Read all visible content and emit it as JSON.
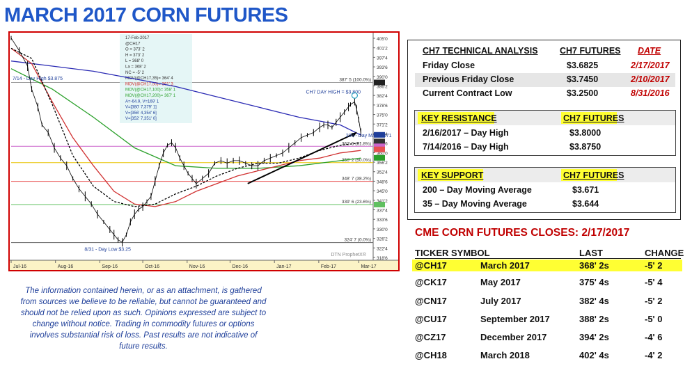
{
  "title": "MARCH 2017 CORN FUTURES",
  "disclaimer": "The information contained herein, or as an attachment, is gathered from sources we believe to be reliable, but cannot be guaranteed and should not be relied upon as such. Opinions expressed are subject to change without notice. Trading in commodity futures or options involves substantial risk of loss. Past results are not indicative of future results.",
  "technical": {
    "header": {
      "label": "CH7 TECHNICAL ANALYSIS",
      "futures": "CH7 FUTURES",
      "date": "DATE"
    },
    "rows": [
      {
        "label": "Friday Close",
        "value": "$3.6825",
        "date": "2/17/2017"
      },
      {
        "label": "Previous Friday Close",
        "value": "$3.7450",
        "date": "2/10/2017"
      },
      {
        "label": "Current Contract Low",
        "value": "$3.2500",
        "date": "8/31/2016"
      }
    ],
    "resistance": {
      "header": "KEY RESISTANCE",
      "header_futures": "CH7 FUTURES",
      "rows": [
        {
          "label": "2/16/2017 – Day High",
          "value": "$3.8000"
        },
        {
          "label": "7/14/2016 – Day High",
          "value": "$3.8750"
        }
      ]
    },
    "support": {
      "header": "KEY SUPPORT",
      "header_futures": "CH7 FUTURES",
      "rows": [
        {
          "label": "200 – Day Moving Average",
          "value": "$3.671"
        },
        {
          "label": "35 – Day Moving Average",
          "value": "$3.644"
        }
      ]
    }
  },
  "closes": {
    "title": "CME CORN FUTURES CLOSES:  2/17/2017",
    "headers": {
      "ticker": "TICKER SYMBOL",
      "last": "LAST",
      "change": "CHANGE"
    },
    "rows": [
      {
        "ticker": "@CH17",
        "month": "March 2017",
        "last": "368' 2s",
        "change": "-5' 2"
      },
      {
        "ticker": "@CK17",
        "month": "May 2017",
        "last": "375' 4s",
        "change": "-5' 4"
      },
      {
        "ticker": "@CN17",
        "month": "July 2017",
        "last": "382' 4s",
        "change": "-5' 2"
      },
      {
        "ticker": "@CU17",
        "month": "September 2017",
        "last": "388' 2s",
        "change": "-5' 0"
      },
      {
        "ticker": "@CZ17",
        "month": "December 2017",
        "last": "394' 2s",
        "change": "-4' 6"
      },
      {
        "ticker": "@CH18",
        "month": "March 2018",
        "last": "402' 4s",
        "change": "-4' 2"
      }
    ]
  },
  "chart_data": {
    "type": "line",
    "ylim": [
      318,
      406
    ],
    "x_ticks": [
      "Jul-16",
      "Aug-16",
      "Sep-16",
      "Oct-16",
      "Nov-16",
      "Dec-16",
      "Jan-17",
      "Feb-17",
      "Mar-17"
    ],
    "y_ticks": [
      "405'0",
      "401'2",
      "397'4",
      "393'6",
      "390'0",
      "386'2",
      "382'4",
      "378'6",
      "375'0",
      "371'2",
      "367'4",
      "363'6",
      "360'0",
      "356'2",
      "352'4",
      "348'6",
      "345'0",
      "341'2",
      "337'4",
      "333'6",
      "330'0",
      "326'2",
      "322'4",
      "318'6"
    ],
    "info_box": [
      "17-Feb-2017",
      "@CH17",
      "O = 373' 2",
      "H = 373' 2",
      "L = 368' 0",
      "La = 368' 2",
      "NC = -5' 2",
      "MOV(@CH17,35)= 364' 4",
      "MOV(@CH17,50)= 361' 3",
      "MOV(@CH17,100)= 358' 1",
      "MOV(@CH17,200)= 367' 1",
      "A=-64.9, V=169' 1",
      "V=[380' 7,379' 1]",
      "V=[356' 4,354' 6]",
      "V=[352' 7,351' 0]"
    ],
    "annotations": [
      {
        "text": "7/14 - Day High $3.875",
        "x": "2016-07-14",
        "y": 387.5
      },
      {
        "text": "CH7 DAY HIGH = $3.800",
        "x": "2017-02-16",
        "y": 380.0
      },
      {
        "text": "200 - Day MA $3.671",
        "x": "2017-02-17",
        "y": 367.1
      },
      {
        "text": "8/31 - Day Low $3.25",
        "x": "2016-08-31",
        "y": 325.0
      },
      {
        "text": "DTN ProphetX®",
        "x": "2017-02-10",
        "y": 320.0
      }
    ],
    "retracement_levels": [
      {
        "label": "387' 5 (100.0%)",
        "value": 387.6,
        "color": "#999999"
      },
      {
        "label": "362' 5 (61.8%)",
        "value": 362.6,
        "color": "#cc66cc"
      },
      {
        "label": "356' 2 (50.0%)",
        "value": 356.2,
        "color": "#e8c400"
      },
      {
        "label": "348' 7 (38.2%)",
        "value": 348.9,
        "color": "#e85050"
      },
      {
        "label": "339' 6 (23.6%)",
        "value": 339.8,
        "color": "#60c060"
      },
      {
        "label": "324' 7 (0.0%)",
        "value": 324.9,
        "color": "#666666"
      }
    ],
    "right_markers": [
      {
        "value": 387.6,
        "color": "#222222"
      },
      {
        "value": 367.1,
        "color": "#1f3f9a"
      },
      {
        "value": 364.5,
        "color": "#333333"
      },
      {
        "value": 362.6,
        "color": "#cc66cc"
      },
      {
        "value": 361.4,
        "color": "#e85050"
      },
      {
        "value": 358.1,
        "color": "#2aa02a"
      },
      {
        "value": 339.8,
        "color": "#60c060"
      }
    ],
    "series": [
      {
        "name": "@CH17",
        "color": "#000000",
        "values": [
          [
            0,
            405
          ],
          [
            4,
            400
          ],
          [
            8,
            394
          ],
          [
            10,
            385
          ],
          [
            13,
            378
          ],
          [
            15,
            371
          ],
          [
            18,
            368
          ],
          [
            21,
            362
          ],
          [
            24,
            358
          ],
          [
            27,
            355
          ],
          [
            30,
            350
          ],
          [
            33,
            346
          ],
          [
            36,
            343
          ],
          [
            39,
            340
          ],
          [
            42,
            336
          ],
          [
            45,
            333
          ],
          [
            48,
            330
          ],
          [
            50,
            328
          ],
          [
            52,
            326
          ],
          [
            54,
            325
          ],
          [
            56,
            328
          ],
          [
            58,
            333
          ],
          [
            60,
            336
          ],
          [
            62,
            338
          ],
          [
            64,
            339
          ],
          [
            66,
            341
          ],
          [
            68,
            343
          ],
          [
            70,
            349
          ],
          [
            72,
            355
          ],
          [
            74,
            360
          ],
          [
            76,
            363
          ],
          [
            78,
            364
          ],
          [
            80,
            362
          ],
          [
            82,
            358
          ],
          [
            84,
            355
          ],
          [
            86,
            352
          ],
          [
            88,
            350
          ],
          [
            90,
            348
          ],
          [
            93,
            350
          ],
          [
            96,
            352
          ],
          [
            99,
            356
          ],
          [
            102,
            357
          ],
          [
            105,
            356
          ],
          [
            108,
            357
          ],
          [
            111,
            357
          ],
          [
            114,
            356
          ],
          [
            117,
            355
          ],
          [
            120,
            355
          ],
          [
            123,
            357
          ],
          [
            126,
            358
          ],
          [
            129,
            359
          ],
          [
            132,
            360
          ],
          [
            135,
            362
          ],
          [
            138,
            364
          ],
          [
            141,
            366
          ],
          [
            144,
            367
          ],
          [
            147,
            368
          ],
          [
            150,
            370
          ],
          [
            152,
            371
          ],
          [
            154,
            371
          ],
          [
            156,
            370
          ],
          [
            158,
            372
          ],
          [
            160,
            374
          ],
          [
            162,
            376
          ],
          [
            164,
            378
          ],
          [
            165,
            379
          ],
          [
            167,
            380
          ],
          [
            168,
            377
          ],
          [
            169,
            373
          ],
          [
            170,
            368
          ]
        ]
      },
      {
        "name": "MOV(@CH17,200)",
        "color": "#2b2bb4",
        "values": [
          [
            0,
            396
          ],
          [
            20,
            394
          ],
          [
            40,
            392
          ],
          [
            60,
            389
          ],
          [
            80,
            386
          ],
          [
            100,
            382
          ],
          [
            120,
            378
          ],
          [
            140,
            374
          ],
          [
            160,
            371
          ],
          [
            170,
            367
          ]
        ]
      },
      {
        "name": "MOV(@CH17,100)",
        "color": "#2aa02a",
        "values": [
          [
            0,
            393
          ],
          [
            20,
            385
          ],
          [
            40,
            374
          ],
          [
            60,
            362
          ],
          [
            80,
            355
          ],
          [
            100,
            354
          ],
          [
            120,
            354
          ],
          [
            140,
            355
          ],
          [
            160,
            357
          ],
          [
            170,
            358
          ]
        ]
      },
      {
        "name": "MOV(@CH17,50)",
        "color": "#d03030",
        "values": [
          [
            0,
            401
          ],
          [
            10,
            395
          ],
          [
            20,
            380
          ],
          [
            30,
            366
          ],
          [
            40,
            355
          ],
          [
            50,
            345
          ],
          [
            60,
            340
          ],
          [
            70,
            339
          ],
          [
            80,
            341
          ],
          [
            90,
            345
          ],
          [
            100,
            348
          ],
          [
            110,
            351
          ],
          [
            120,
            353
          ],
          [
            130,
            355
          ],
          [
            140,
            357
          ],
          [
            150,
            358
          ],
          [
            160,
            360
          ],
          [
            170,
            361
          ]
        ]
      },
      {
        "name": "MOV(@CH17,35)",
        "color": "#000000",
        "values": [
          [
            0,
            401
          ],
          [
            10,
            397
          ],
          [
            20,
            379
          ],
          [
            30,
            359
          ],
          [
            40,
            347
          ],
          [
            50,
            341
          ],
          [
            60,
            339
          ],
          [
            70,
            340
          ],
          [
            80,
            344
          ],
          [
            90,
            347
          ],
          [
            100,
            351
          ],
          [
            110,
            354
          ],
          [
            120,
            356
          ],
          [
            130,
            356
          ],
          [
            140,
            358
          ],
          [
            150,
            361
          ],
          [
            160,
            363
          ],
          [
            170,
            364
          ]
        ]
      }
    ],
    "trendline": {
      "start": [
        115,
        348
      ],
      "end": [
        168,
        368
      ]
    }
  }
}
